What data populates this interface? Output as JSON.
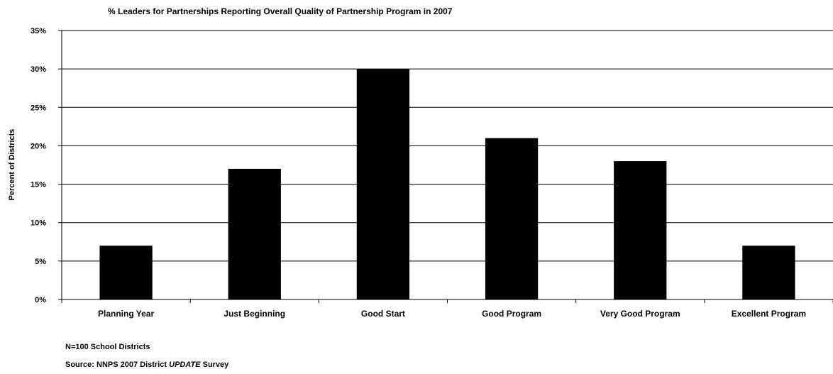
{
  "chart_data": {
    "type": "bar",
    "title": "% Leaders for Partnerships Reporting Overall Quality of Partnership Program in 2007",
    "xlabel": "",
    "ylabel": "Percent of Districts",
    "ylim": [
      0,
      35
    ],
    "yticks": [
      0,
      5,
      10,
      15,
      20,
      25,
      30,
      35
    ],
    "ytick_suffix": "%",
    "grid": true,
    "legend": "none",
    "bar_color": "#000000",
    "categories": [
      "Planning Year",
      "Just Beginning",
      "Good Start",
      "Good Program",
      "Very Good Program",
      "Excellent Program"
    ],
    "values": [
      7,
      17,
      30,
      21,
      18,
      7
    ]
  },
  "notes": {
    "sample": "N=100 School Districts",
    "source_prefix": "Source: NNPS 2007 District ",
    "source_emphasis": "UPDATE",
    "source_suffix": " Survey"
  }
}
